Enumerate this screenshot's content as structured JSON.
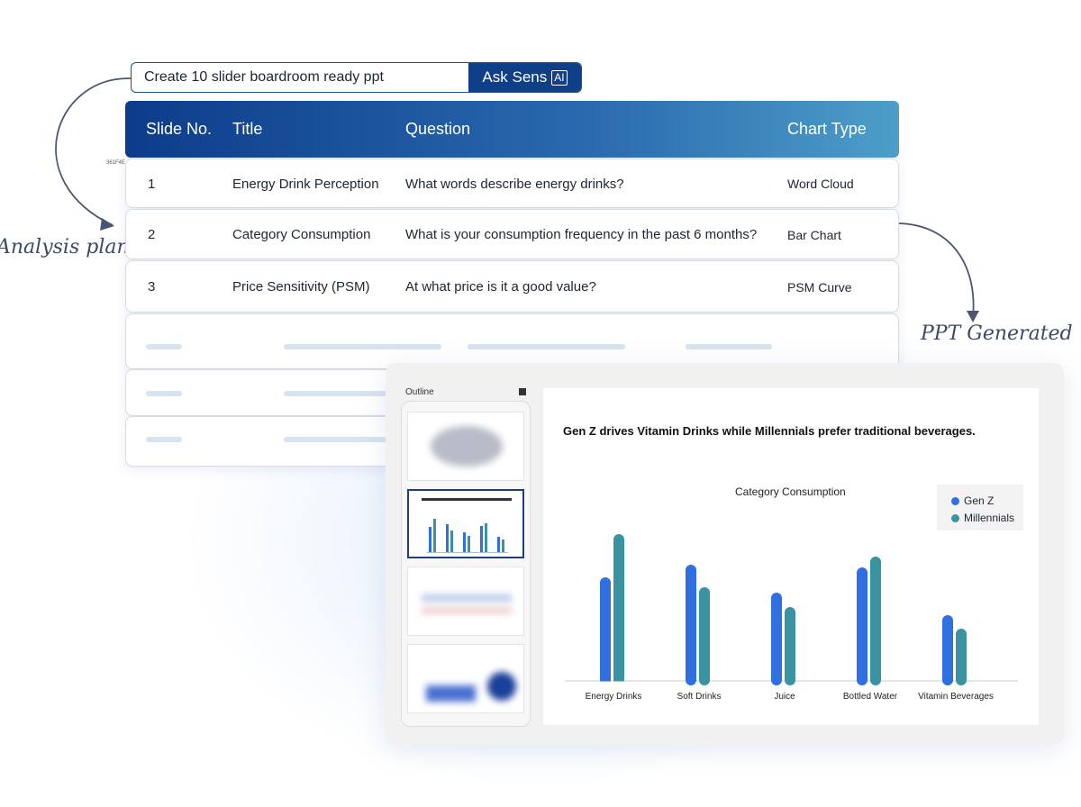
{
  "labels": {
    "analysis_plan": "Analysis plan",
    "ppt_generated": "PPT Generated",
    "artifact": "361F4E"
  },
  "search": {
    "value": "Create 10 slider boardroom ready ppt",
    "button": "Ask Sens",
    "ai_badge": "AI"
  },
  "table": {
    "headers": [
      "Slide No.",
      "Title",
      "Question",
      "Chart Type"
    ],
    "rows": [
      {
        "no": "1",
        "title": "Energy Drink Perception",
        "question": "What words describe energy drinks?",
        "chart": "Word Cloud"
      },
      {
        "no": "2",
        "title": "Category Consumption",
        "question": "What is your consumption frequency in the past 6 months?",
        "chart": "Bar Chart"
      },
      {
        "no": "3",
        "title": "Price Sensitivity (PSM)",
        "question": "At what price is it a good value?",
        "chart": "PSM Curve"
      }
    ]
  },
  "ppt": {
    "outline_label": "Outline",
    "selected_thumb": 2,
    "slide_title": "Gen Z drives Vitamin Drinks while Millennials prefer traditional beverages."
  },
  "colors": {
    "header_start": "#0c3c8a",
    "header_end": "#4d9ec9",
    "gen_z": "#2f6fe0",
    "millennials": "#3a93a0"
  },
  "chart_data": {
    "type": "bar",
    "title": "Category Consumption",
    "categories": [
      "Energy Drinks",
      "Soft Drinks",
      "Juice",
      "Bottled Water",
      "Vitamin Beverages"
    ],
    "series": [
      {
        "name": "Gen Z",
        "values": [
          115,
          129,
          98,
          126,
          73
        ]
      },
      {
        "name": "Millennials",
        "values": [
          163,
          104,
          82,
          138,
          58
        ]
      }
    ],
    "legend": "top-right",
    "grid": false,
    "ylim": [
      0,
      170
    ]
  }
}
